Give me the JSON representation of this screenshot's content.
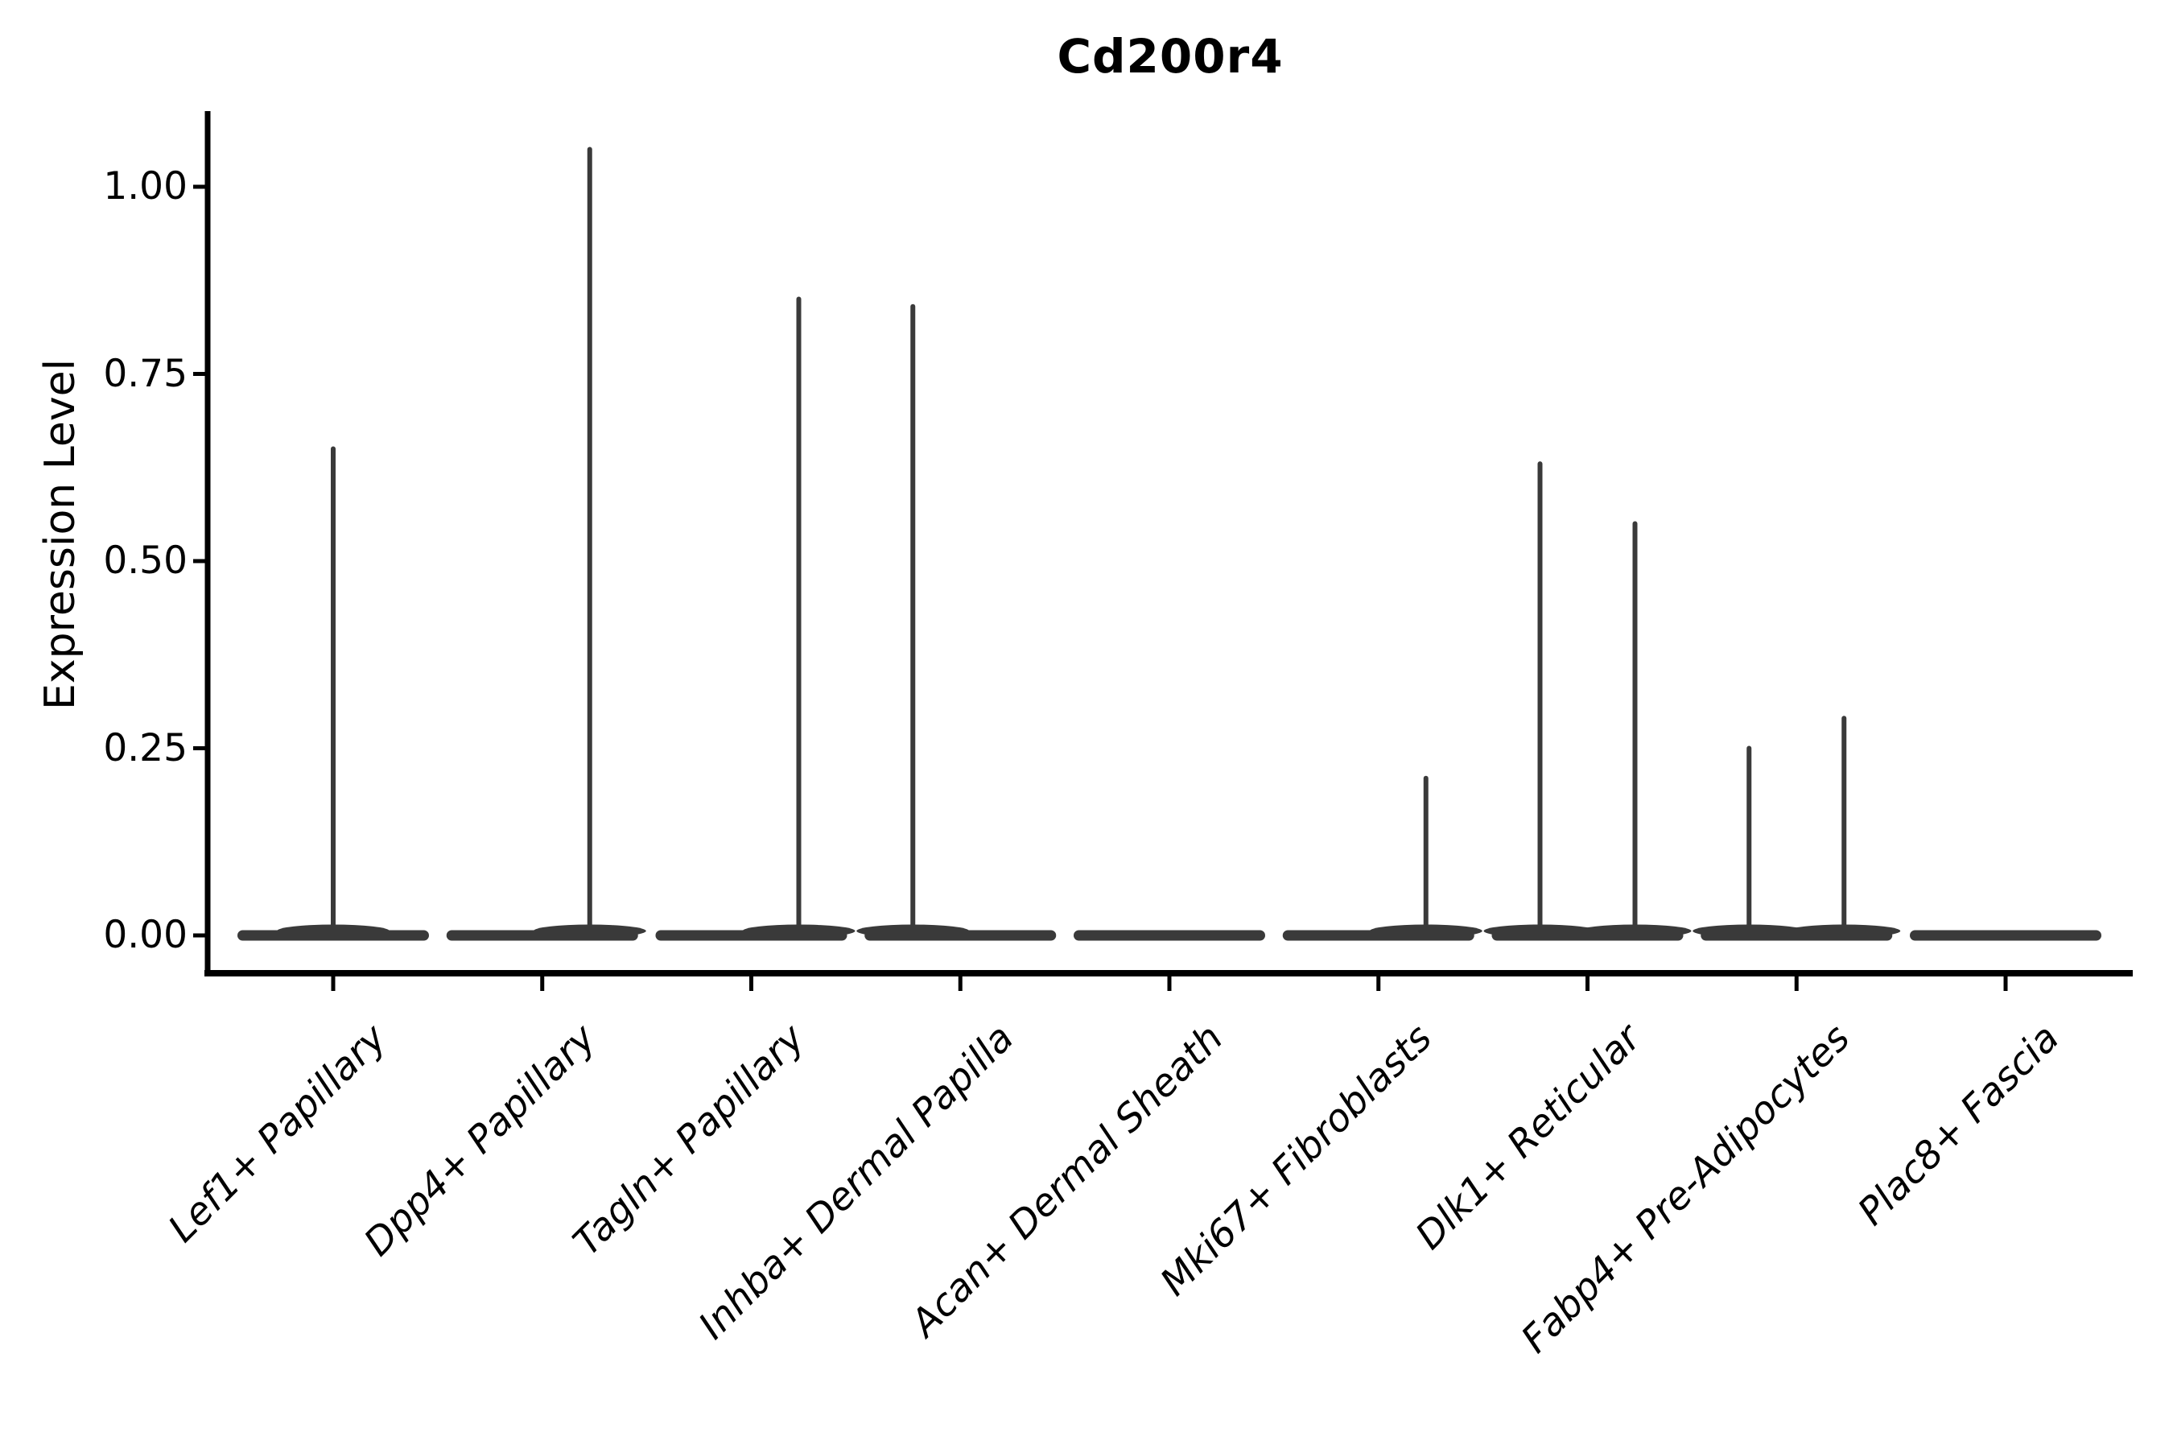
{
  "title": "Cd200r4",
  "y_axis": {
    "label": "Expression Level",
    "ticks": [
      {
        "label": "1.00",
        "value": 1.0
      },
      {
        "label": "0.75",
        "value": 0.75
      },
      {
        "label": "0.50",
        "value": 0.5
      },
      {
        "label": "0.25",
        "value": 0.25
      },
      {
        "label": "0.00",
        "value": 0.0
      }
    ]
  },
  "x_axis": {
    "categories": [
      "Lef1+ Papillary",
      "Dpp4+ Papillary",
      "Tagln+ Papillary",
      "Inhba+ Dermal Papilla",
      "Acan+ Dermal Sheath",
      "Mki67+ Fibroblasts",
      "Dlk1+ Reticular",
      "Fabp4+ Pre-Adipocytes",
      "Plac8+ Fascia"
    ]
  },
  "chart_data": {
    "type": "violin",
    "title": "Cd200r4",
    "xlabel": "",
    "ylabel": "Expression Level",
    "ylim": [
      -0.05,
      1.1
    ],
    "y_ticks": [
      0.0,
      0.25,
      0.5,
      0.75,
      1.0
    ],
    "grid": false,
    "legend": "none",
    "categories": [
      "Lef1+ Papillary",
      "Dpp4+ Papillary",
      "Tagln+ Papillary",
      "Inhba+ Dermal Papilla",
      "Acan+ Dermal Sheath",
      "Mki67+ Fibroblasts",
      "Dlk1+ Reticular",
      "Fabp4+ Pre-Adipocytes",
      "Plac8+ Fascia"
    ],
    "series": [
      {
        "category": "Lef1+ Papillary",
        "baseline": 0,
        "spikes": [
          {
            "offset": "center",
            "max": 0.65
          }
        ]
      },
      {
        "category": "Dpp4+ Papillary",
        "baseline": 0,
        "spikes": [
          {
            "offset": "right",
            "max": 1.05
          }
        ]
      },
      {
        "category": "Tagln+ Papillary",
        "baseline": 0,
        "spikes": [
          {
            "offset": "right",
            "max": 0.85
          }
        ]
      },
      {
        "category": "Inhba+ Dermal Papilla",
        "baseline": 0,
        "spikes": [
          {
            "offset": "left",
            "max": 0.84
          }
        ]
      },
      {
        "category": "Acan+ Dermal Sheath",
        "baseline": 0,
        "spikes": []
      },
      {
        "category": "Mki67+ Fibroblasts",
        "baseline": 0,
        "spikes": [
          {
            "offset": "right",
            "max": 0.21
          }
        ]
      },
      {
        "category": "Dlk1+ Reticular",
        "baseline": 0,
        "spikes": [
          {
            "offset": "left",
            "max": 0.63
          },
          {
            "offset": "right",
            "max": 0.55
          }
        ]
      },
      {
        "category": "Fabp4+ Pre-Adipocytes",
        "baseline": 0,
        "spikes": [
          {
            "offset": "left",
            "max": 0.25
          },
          {
            "offset": "right",
            "max": 0.29
          }
        ]
      },
      {
        "category": "Plac8+ Fascia",
        "baseline": 0,
        "spikes": []
      }
    ],
    "violin_color": "#3a3a3a",
    "axis_color": "#000000",
    "text_color": "#000000"
  }
}
